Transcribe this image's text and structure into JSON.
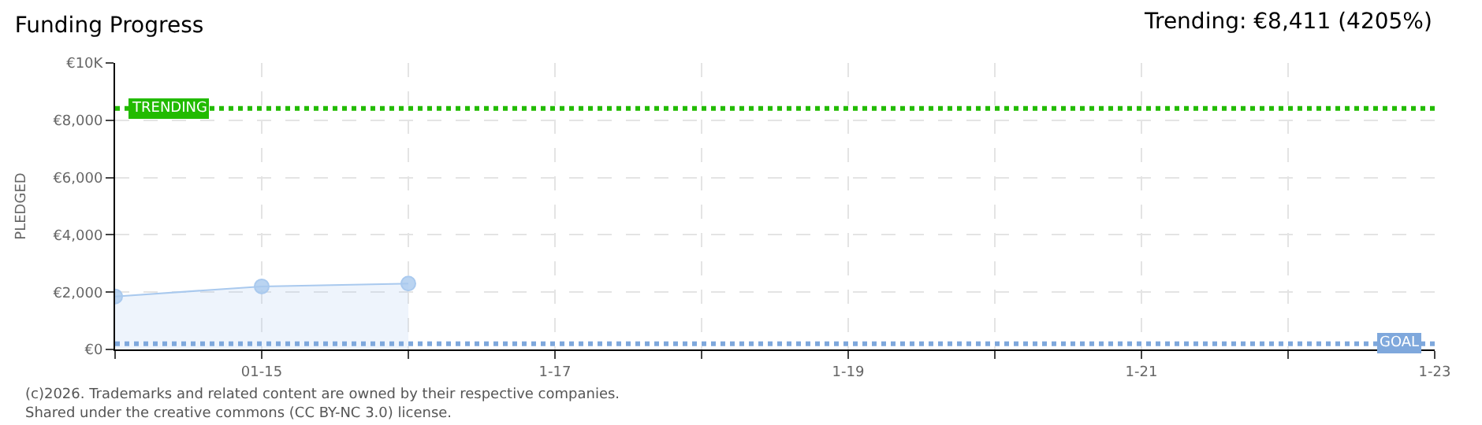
{
  "chart_data": {
    "type": "area",
    "title": "Funding Progress",
    "ylabel": "PLEDGED",
    "x": [
      "--01-14",
      "--01-15",
      "--01-16"
    ],
    "series": [
      {
        "color": "#a9c9ee",
        "values": [
          1850,
          2200,
          2300
        ]
      }
    ],
    "marker": "circle",
    "grid": true,
    "xlim": [
      "--01-14",
      "--01-23"
    ],
    "xticks": [
      {
        "value": "--01-14",
        "label": null
      },
      {
        "value": "--01-15",
        "label": "01-15"
      },
      {
        "value": "--01-16",
        "label": null
      },
      {
        "value": "--01-17",
        "label": "1-17"
      },
      {
        "value": "--01-18",
        "label": null
      },
      {
        "value": "--01-19",
        "label": "1-19"
      },
      {
        "value": "--01-20",
        "label": null
      },
      {
        "value": "--01-21",
        "label": "1-21"
      },
      {
        "value": "--01-22",
        "label": null
      },
      {
        "value": "--01-23",
        "label": "1-23"
      }
    ],
    "ylim": [
      0,
      10000
    ],
    "yticks": [
      {
        "value": 0,
        "label": "€0"
      },
      {
        "value": 2000,
        "label": "€2,000"
      },
      {
        "value": 4000,
        "label": "€4,000"
      },
      {
        "value": 6000,
        "label": "€6,000"
      },
      {
        "value": 8000,
        "label": "€8,000"
      },
      {
        "value": 10000,
        "label": "€10K"
      }
    ],
    "ref_lines": [
      {
        "axis": "y",
        "value": 8411,
        "label": "TRENDING",
        "color": "#22bb00",
        "line_style": "dotted"
      },
      {
        "axis": "y",
        "value": 200,
        "label": "GOAL",
        "color": "#7fa8dc",
        "line_style": "dotted"
      }
    ],
    "annotations": [
      "Trending: €8,411 (4205%)",
      "(c)2026. Trademarks and related content are owned by their respective companies.",
      "Shared under the creative commons (CC BY-NC 3.0) license."
    ]
  }
}
